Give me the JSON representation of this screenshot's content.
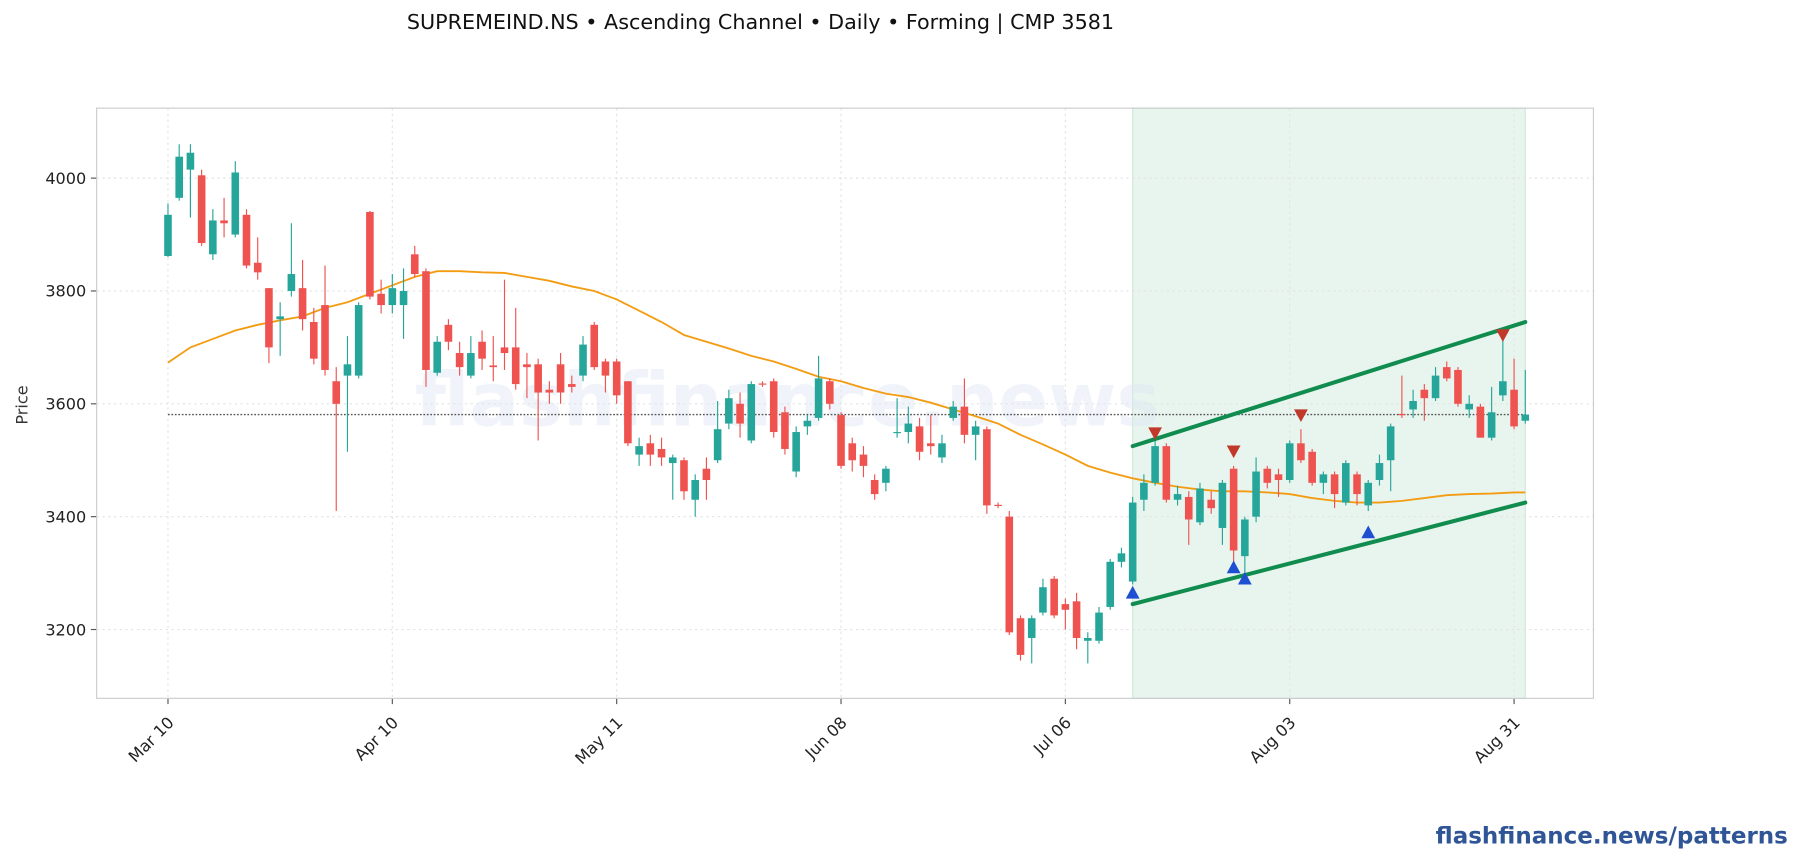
{
  "chart_data": {
    "type": "candlestick",
    "title": "SUPREMEIND.NS  •  Ascending Channel  •  Daily  •  Forming  |  CMP 3581",
    "ylabel": "Price",
    "watermark": "flashfinance.news",
    "footer": "flashfinance.news/patterns",
    "up_color": "#26a69a",
    "down_color": "#ef5350",
    "grid": true,
    "ylim": [
      3078,
      4124
    ],
    "yticks": [
      3200,
      3400,
      3600,
      3800,
      4000
    ],
    "categories": [
      "Mar 10",
      null,
      null,
      null,
      null,
      null,
      null,
      null,
      null,
      null,
      null,
      null,
      null,
      null,
      null,
      null,
      null,
      null,
      null,
      null,
      "Apr 10",
      null,
      null,
      null,
      null,
      null,
      null,
      null,
      null,
      null,
      null,
      null,
      null,
      null,
      null,
      null,
      null,
      null,
      null,
      null,
      "May 11",
      null,
      null,
      null,
      null,
      null,
      null,
      null,
      null,
      null,
      null,
      null,
      null,
      null,
      null,
      null,
      null,
      null,
      null,
      null,
      "Jun 08",
      null,
      null,
      null,
      null,
      null,
      null,
      null,
      null,
      null,
      null,
      null,
      null,
      null,
      null,
      null,
      null,
      null,
      null,
      null,
      "Jul 06",
      null,
      null,
      null,
      null,
      null,
      null,
      null,
      null,
      null,
      null,
      null,
      null,
      null,
      null,
      null,
      null,
      null,
      null,
      null,
      "Aug 03",
      null,
      null,
      null,
      null,
      null,
      null,
      null,
      null,
      null,
      null,
      null,
      null,
      null,
      null,
      null,
      null,
      null,
      null,
      null,
      "Aug 31",
      null
    ],
    "candles": [
      [
        3862,
        3955,
        3860,
        3935
      ],
      [
        3965,
        4060,
        3960,
        4038
      ],
      [
        4015,
        4060,
        3930,
        4045
      ],
      [
        4005,
        4015,
        3880,
        3885
      ],
      [
        3865,
        3945,
        3855,
        3925
      ],
      [
        3925,
        3965,
        3895,
        3920
      ],
      [
        3900,
        4030,
        3895,
        4010
      ],
      [
        3935,
        3945,
        3840,
        3845
      ],
      [
        3850,
        3895,
        3820,
        3833
      ],
      [
        3805,
        3805,
        3672,
        3700
      ],
      [
        3750,
        3780,
        3685,
        3755
      ],
      [
        3800,
        3920,
        3790,
        3830
      ],
      [
        3805,
        3855,
        3730,
        3750
      ],
      [
        3745,
        3770,
        3670,
        3680
      ],
      [
        3775,
        3845,
        3650,
        3660
      ],
      [
        3640,
        3665,
        3410,
        3600
      ],
      [
        3650,
        3720,
        3515,
        3670
      ],
      [
        3650,
        3780,
        3645,
        3775
      ],
      [
        3940,
        3942,
        3785,
        3790
      ],
      [
        3795,
        3820,
        3760,
        3775
      ],
      [
        3775,
        3830,
        3760,
        3805
      ],
      [
        3775,
        3840,
        3715,
        3800
      ],
      [
        3865,
        3880,
        3825,
        3830
      ],
      [
        3835,
        3840,
        3630,
        3660
      ],
      [
        3655,
        3720,
        3650,
        3710
      ],
      [
        3740,
        3750,
        3695,
        3710
      ],
      [
        3690,
        3710,
        3650,
        3665
      ],
      [
        3650,
        3720,
        3645,
        3690
      ],
      [
        3710,
        3730,
        3660,
        3680
      ],
      [
        3668,
        3720,
        3640,
        3665
      ],
      [
        3700,
        3820,
        3660,
        3690
      ],
      [
        3700,
        3770,
        3625,
        3635
      ],
      [
        3670,
        3690,
        3610,
        3665
      ],
      [
        3670,
        3680,
        3535,
        3620
      ],
      [
        3625,
        3640,
        3600,
        3620
      ],
      [
        3670,
        3690,
        3600,
        3620
      ],
      [
        3635,
        3650,
        3620,
        3630
      ],
      [
        3650,
        3720,
        3640,
        3705
      ],
      [
        3740,
        3745,
        3660,
        3665
      ],
      [
        3675,
        3680,
        3620,
        3650
      ],
      [
        3675,
        3680,
        3600,
        3615
      ],
      [
        3640,
        3640,
        3525,
        3530
      ],
      [
        3510,
        3540,
        3490,
        3525
      ],
      [
        3530,
        3545,
        3490,
        3510
      ],
      [
        3520,
        3540,
        3490,
        3505
      ],
      [
        3495,
        3510,
        3430,
        3505
      ],
      [
        3500,
        3505,
        3430,
        3445
      ],
      [
        3430,
        3475,
        3400,
        3465
      ],
      [
        3485,
        3505,
        3430,
        3465
      ],
      [
        3500,
        3605,
        3495,
        3555
      ],
      [
        3565,
        3625,
        3555,
        3610
      ],
      [
        3600,
        3620,
        3540,
        3565
      ],
      [
        3535,
        3640,
        3530,
        3635
      ],
      [
        3636,
        3640,
        3630,
        3635
      ],
      [
        3640,
        3645,
        3540,
        3550
      ],
      [
        3585,
        3595,
        3510,
        3520
      ],
      [
        3480,
        3560,
        3470,
        3550
      ],
      [
        3560,
        3580,
        3545,
        3570
      ],
      [
        3575,
        3685,
        3570,
        3645
      ],
      [
        3640,
        3645,
        3590,
        3600
      ],
      [
        3580,
        3585,
        3485,
        3490
      ],
      [
        3530,
        3540,
        3480,
        3500
      ],
      [
        3510,
        3525,
        3470,
        3490
      ],
      [
        3465,
        3475,
        3430,
        3440
      ],
      [
        3460,
        3490,
        3445,
        3485
      ],
      [
        3549,
        3610,
        3540,
        3550
      ],
      [
        3550,
        3595,
        3530,
        3565
      ],
      [
        3560,
        3575,
        3500,
        3515
      ],
      [
        3530,
        3580,
        3510,
        3525
      ],
      [
        3505,
        3545,
        3495,
        3530
      ],
      [
        3575,
        3605,
        3570,
        3595
      ],
      [
        3595,
        3645,
        3530,
        3545
      ],
      [
        3545,
        3570,
        3500,
        3560
      ],
      [
        3555,
        3560,
        3405,
        3420
      ],
      [
        3421,
        3425,
        3415,
        3420
      ],
      [
        3400,
        3410,
        3190,
        3195
      ],
      [
        3220,
        3225,
        3145,
        3155
      ],
      [
        3185,
        3225,
        3140,
        3220
      ],
      [
        3230,
        3290,
        3225,
        3275
      ],
      [
        3290,
        3295,
        3220,
        3225
      ],
      [
        3245,
        3255,
        3200,
        3235
      ],
      [
        3250,
        3265,
        3165,
        3185
      ],
      [
        3180,
        3195,
        3140,
        3185
      ],
      [
        3180,
        3240,
        3175,
        3230
      ],
      [
        3240,
        3325,
        3235,
        3320
      ],
      [
        3320,
        3345,
        3310,
        3335
      ],
      [
        3285,
        3435,
        3280,
        3425
      ],
      [
        3430,
        3475,
        3410,
        3460
      ],
      [
        3460,
        3540,
        3455,
        3525
      ],
      [
        3525,
        3530,
        3425,
        3430
      ],
      [
        3430,
        3455,
        3420,
        3440
      ],
      [
        3435,
        3445,
        3350,
        3395
      ],
      [
        3390,
        3460,
        3385,
        3450
      ],
      [
        3430,
        3445,
        3405,
        3415
      ],
      [
        3380,
        3465,
        3350,
        3460
      ],
      [
        3485,
        3490,
        3320,
        3340
      ],
      [
        3330,
        3400,
        3300,
        3395
      ],
      [
        3400,
        3505,
        3390,
        3480
      ],
      [
        3485,
        3490,
        3450,
        3460
      ],
      [
        3475,
        3485,
        3435,
        3465
      ],
      [
        3465,
        3535,
        3460,
        3530
      ],
      [
        3530,
        3555,
        3495,
        3500
      ],
      [
        3515,
        3520,
        3455,
        3460
      ],
      [
        3460,
        3480,
        3440,
        3475
      ],
      [
        3475,
        3480,
        3415,
        3440
      ],
      [
        3425,
        3500,
        3420,
        3495
      ],
      [
        3475,
        3480,
        3420,
        3440
      ],
      [
        3420,
        3465,
        3410,
        3460
      ],
      [
        3465,
        3510,
        3455,
        3495
      ],
      [
        3500,
        3565,
        3445,
        3560
      ],
      [
        3582,
        3650,
        3575,
        3580
      ],
      [
        3590,
        3625,
        3575,
        3605
      ],
      [
        3625,
        3635,
        3570,
        3610
      ],
      [
        3610,
        3665,
        3605,
        3650
      ],
      [
        3665,
        3675,
        3640,
        3645
      ],
      [
        3660,
        3665,
        3595,
        3600
      ],
      [
        3590,
        3615,
        3575,
        3600
      ],
      [
        3595,
        3600,
        3540,
        3540
      ],
      [
        3540,
        3630,
        3535,
        3585
      ],
      [
        3615,
        3720,
        3605,
        3640
      ],
      [
        3625,
        3680,
        3555,
        3560
      ],
      [
        3570,
        3660,
        3565,
        3581
      ]
    ],
    "moving_average": {
      "color": "#f39c12",
      "x": [
        0,
        2,
        4,
        6,
        8,
        10,
        12,
        14,
        16,
        18,
        20,
        22,
        24,
        26,
        28,
        30,
        32,
        34,
        36,
        38,
        40,
        42,
        44,
        46,
        48,
        50,
        52,
        54,
        56,
        58,
        60,
        62,
        64,
        66,
        68,
        70,
        72,
        74,
        76,
        78,
        80,
        82,
        84,
        86,
        88,
        90,
        92,
        94,
        96,
        98,
        100,
        102,
        104,
        106,
        108,
        110,
        112,
        114,
        116,
        118,
        120,
        121
      ],
      "values": [
        3673,
        3700,
        3715,
        3730,
        3740,
        3748,
        3755,
        3770,
        3780,
        3795,
        3810,
        3825,
        3835,
        3835,
        3833,
        3832,
        3825,
        3818,
        3808,
        3800,
        3785,
        3765,
        3745,
        3722,
        3710,
        3698,
        3685,
        3675,
        3662,
        3648,
        3640,
        3628,
        3618,
        3612,
        3602,
        3590,
        3578,
        3565,
        3545,
        3528,
        3510,
        3490,
        3478,
        3468,
        3460,
        3453,
        3448,
        3445,
        3445,
        3443,
        3440,
        3433,
        3428,
        3425,
        3425,
        3428,
        3433,
        3438,
        3440,
        3441,
        3443,
        3443
      ]
    },
    "cmp": {
      "value": 3581,
      "x": [
        0,
        121
      ]
    },
    "channel": {
      "color": "#118c4f",
      "shade": "#e8f5ee",
      "x": [
        86,
        121
      ],
      "upper": [
        3525,
        3745
      ],
      "lower": [
        3245,
        3425
      ]
    },
    "swing_highs": {
      "color": "#c0392b",
      "x": [
        88,
        95,
        101,
        119
      ],
      "values": [
        3548,
        3516,
        3580,
        3722
      ]
    },
    "swing_lows": {
      "color": "#1f4fd1",
      "x": [
        86,
        95,
        96,
        107
      ],
      "values": [
        3265,
        3310,
        3290,
        3372
      ]
    }
  }
}
